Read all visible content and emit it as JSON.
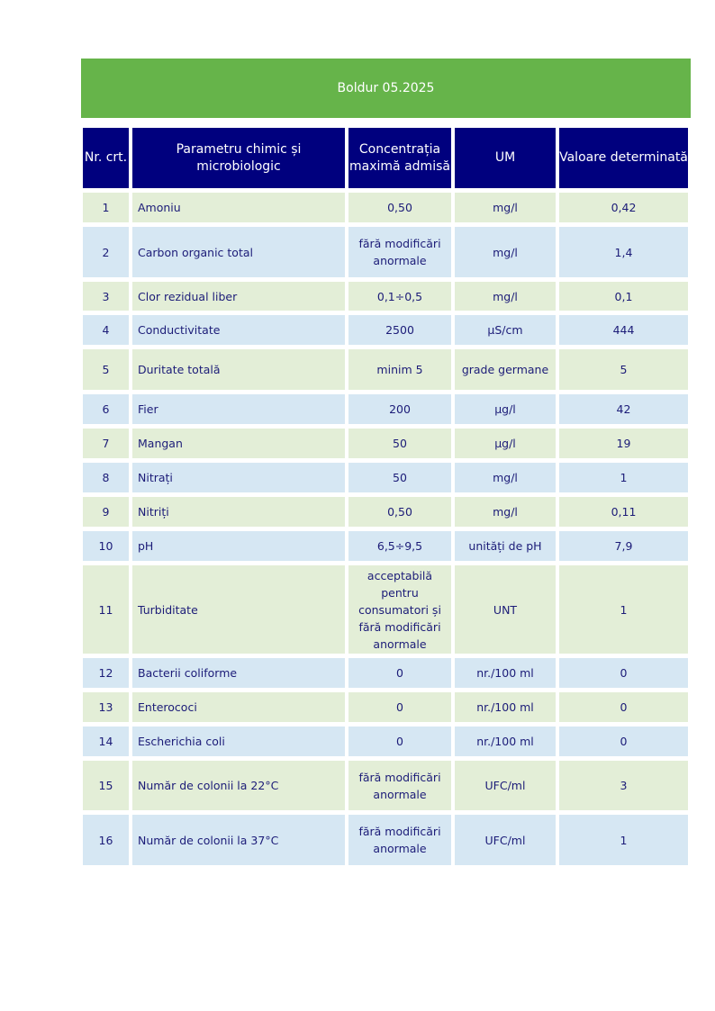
{
  "banner": {
    "title": "Boldur  05.2025"
  },
  "colors": {
    "banner": "#66b44a",
    "header": "#00007e",
    "row_green": "#e3eed7",
    "row_blue": "#d6e7f3",
    "text": "#1c1c78"
  },
  "table": {
    "headers": [
      "Nr. crt.",
      "Parametru chimic și microbiologic",
      "Concentrația maximă admisă",
      "UM",
      "Valoare determinată"
    ],
    "rows": [
      [
        "1",
        "Amoniu",
        "0,50",
        "mg/l",
        "0,42"
      ],
      [
        "2",
        "Carbon organic total",
        "fără modificări anormale",
        "mg/l",
        "1,4"
      ],
      [
        "3",
        "Clor rezidual liber",
        "0,1÷0,5",
        "mg/l",
        "0,1"
      ],
      [
        "4",
        "Conductivitate",
        "2500",
        "µS/cm",
        "444"
      ],
      [
        "5",
        "Duritate totală",
        "minim 5",
        "grade germane",
        "5"
      ],
      [
        "6",
        "Fier",
        "200",
        "µg/l",
        "42"
      ],
      [
        "7",
        "Mangan",
        "50",
        "µg/l",
        "19"
      ],
      [
        "8",
        "Nitrați",
        "50",
        "mg/l",
        "1"
      ],
      [
        "9",
        "Nitriți",
        "0,50",
        "mg/l",
        "0,11"
      ],
      [
        "10",
        "pH",
        "6,5÷9,5",
        "unități de pH",
        "7,9"
      ],
      [
        "11",
        "Turbiditate",
        "acceptabilă pentru consumatori și fără modificări anormale",
        "UNT",
        "1"
      ],
      [
        "12",
        "Bacterii coliforme",
        "0",
        "nr./100 ml",
        "0"
      ],
      [
        "13",
        "Enterococi",
        "0",
        "nr./100 ml",
        "0"
      ],
      [
        "14",
        "Escherichia coli",
        "0",
        "nr./100 ml",
        "0"
      ],
      [
        "15",
        "Număr de colonii la 22°C",
        "fără modificări anormale",
        "UFC/ml",
        "3"
      ],
      [
        "16",
        "Număr de colonii la 37°C",
        "fără modificări anormale",
        "UFC/ml",
        "1"
      ]
    ]
  }
}
